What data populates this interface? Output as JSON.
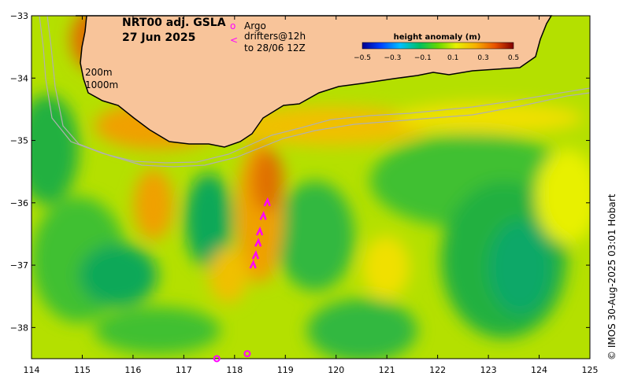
{
  "map": {
    "title_line1": "NRT00 adj. GSLA",
    "title_line2": "27 Jun 2025",
    "legend": {
      "argo_symbol": "o",
      "argo_label": "Argo",
      "drifter_symbol": "<",
      "drifter_label_line1": "drifters@12h",
      "drifter_label_line2": "to 28/06 12Z"
    },
    "isobath_labels": [
      "200m",
      "1000m"
    ],
    "colorbar": {
      "title": "height anomaly (m)",
      "ticks": [
        "−0.5",
        "−0.3",
        "−0.1",
        "0.1",
        "0.3",
        "0.5"
      ],
      "range": [
        -0.5,
        0.5
      ]
    },
    "credit": "© IMOS 30-Aug-2025 03:01 Hobart",
    "x_ticks": [
      "114",
      "115",
      "116",
      "117",
      "118",
      "119",
      "120",
      "121",
      "122",
      "123",
      "124",
      "125"
    ],
    "y_ticks": [
      "−33",
      "−34",
      "−35",
      "−36",
      "−37",
      "−38"
    ],
    "lon_range": [
      114,
      125
    ],
    "lat_range": [
      -38.5,
      -33
    ],
    "colors": {
      "land": "#f8c49a",
      "coast": "#000000",
      "isobath": "#b0b0b0",
      "argo": "#ff00ff",
      "drifter": "#ff00ff"
    },
    "argo_floats": [
      {
        "lon": 117.65,
        "lat": -38.5
      },
      {
        "lon": 118.25,
        "lat": -38.42
      }
    ],
    "drifter_track": [
      {
        "lon": 118.37,
        "lat": -37.0
      },
      {
        "lon": 118.42,
        "lat": -36.85
      },
      {
        "lon": 118.47,
        "lat": -36.65
      },
      {
        "lon": 118.5,
        "lat": -36.47
      },
      {
        "lon": 118.57,
        "lat": -36.22
      },
      {
        "lon": 118.65,
        "lat": -36.0
      }
    ]
  }
}
